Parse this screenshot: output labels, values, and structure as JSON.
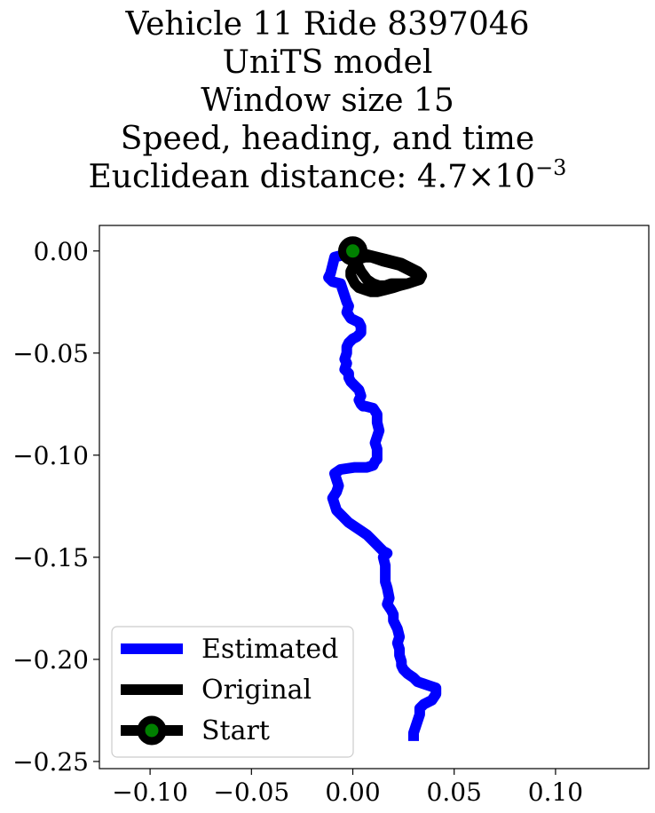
{
  "chart_data": {
    "type": "line",
    "title_lines": [
      "Vehicle 11 Ride 8397046",
      "UniTS model",
      "Window size 15",
      "Speed, heading, and time"
    ],
    "distance_label": "Euclidean distance: 4.7",
    "distance_multiplier": "×10",
    "distance_exponent": "−3",
    "xlim": [
      -0.125,
      0.146
    ],
    "ylim": [
      -0.2535,
      0.0125
    ],
    "xticks": [
      -0.1,
      -0.05,
      0.0,
      0.05,
      0.1
    ],
    "xtick_labels": [
      "−0.10",
      "−0.05",
      "0.00",
      "0.05",
      "0.10"
    ],
    "yticks": [
      0.0,
      -0.05,
      -0.1,
      -0.15,
      -0.2,
      -0.25
    ],
    "ytick_labels": [
      "0.00",
      "−0.05",
      "−0.10",
      "−0.15",
      "−0.20",
      "−0.25"
    ],
    "grid": false,
    "legend_position": "lower-left",
    "series": [
      {
        "name": "Estimated",
        "color": "#0000ff",
        "x": [
          0.0,
          -0.005,
          -0.009,
          -0.01,
          -0.011,
          -0.012,
          -0.01,
          -0.006,
          -0.005,
          -0.004,
          -0.003,
          -0.002,
          -0.003,
          -0.001,
          0.001,
          0.003,
          0.004,
          0.004,
          0.002,
          0.0,
          -0.002,
          -0.003,
          -0.003,
          -0.004,
          -0.003,
          -0.004,
          -0.002,
          -0.002,
          -0.001,
          0.001,
          0.003,
          0.004,
          0.003,
          0.004,
          0.005,
          0.006,
          0.01,
          0.012,
          0.012,
          0.013,
          0.012,
          0.011,
          0.012,
          0.012,
          0.012,
          0.011,
          0.01,
          0.007,
          0.004,
          0.001,
          -0.006,
          -0.009,
          -0.008,
          -0.007,
          -0.008,
          -0.01,
          -0.009,
          -0.008,
          -0.006,
          -0.004,
          -0.002,
          0.001,
          0.004,
          0.007,
          0.01,
          0.013,
          0.015,
          0.017,
          0.015,
          0.016,
          0.016,
          0.016,
          0.017,
          0.018,
          0.017,
          0.019,
          0.02,
          0.02,
          0.022,
          0.023,
          0.022,
          0.023,
          0.023,
          0.024,
          0.024,
          0.025,
          0.027,
          0.03,
          0.032,
          0.035,
          0.038,
          0.041,
          0.041,
          0.039,
          0.035,
          0.033,
          0.033,
          0.032,
          0.031,
          0.03,
          0.03
        ],
        "y": [
          -0.002,
          -0.002,
          -0.003,
          -0.007,
          -0.011,
          -0.013,
          -0.015,
          -0.016,
          -0.019,
          -0.022,
          -0.025,
          -0.027,
          -0.03,
          -0.033,
          -0.034,
          -0.035,
          -0.037,
          -0.04,
          -0.042,
          -0.043,
          -0.045,
          -0.047,
          -0.05,
          -0.053,
          -0.055,
          -0.058,
          -0.06,
          -0.062,
          -0.064,
          -0.066,
          -0.068,
          -0.071,
          -0.073,
          -0.075,
          -0.076,
          -0.076,
          -0.077,
          -0.08,
          -0.084,
          -0.088,
          -0.091,
          -0.094,
          -0.097,
          -0.1,
          -0.102,
          -0.103,
          -0.105,
          -0.106,
          -0.106,
          -0.106,
          -0.107,
          -0.109,
          -0.112,
          -0.115,
          -0.118,
          -0.121,
          -0.124,
          -0.127,
          -0.129,
          -0.131,
          -0.133,
          -0.135,
          -0.137,
          -0.139,
          -0.142,
          -0.145,
          -0.147,
          -0.148,
          -0.15,
          -0.154,
          -0.158,
          -0.162,
          -0.165,
          -0.17,
          -0.173,
          -0.176,
          -0.178,
          -0.181,
          -0.185,
          -0.189,
          -0.192,
          -0.195,
          -0.198,
          -0.201,
          -0.203,
          -0.205,
          -0.207,
          -0.209,
          -0.211,
          -0.212,
          -0.213,
          -0.214,
          -0.217,
          -0.22,
          -0.222,
          -0.224,
          -0.227,
          -0.23,
          -0.233,
          -0.236,
          -0.24
        ]
      },
      {
        "name": "Original",
        "color": "#000000",
        "x": [
          0.0,
          0.004,
          0.008,
          0.012,
          0.016,
          0.02,
          0.024,
          0.028,
          0.032,
          0.034,
          0.033,
          0.03,
          0.027,
          0.023,
          0.02,
          0.016,
          0.012,
          0.009,
          0.006,
          0.003,
          0.001,
          0.0,
          -0.001,
          -0.001,
          0.0,
          0.001,
          0.003,
          0.006,
          0.009,
          0.012,
          0.015,
          0.019,
          0.023,
          0.027,
          0.031,
          0.033,
          0.033,
          0.03,
          0.027,
          0.023,
          0.019,
          0.016,
          0.013,
          0.01,
          0.007,
          0.004,
          0.002,
          0.0
        ],
        "y": [
          0.0,
          -0.001,
          -0.002,
          -0.003,
          -0.004,
          -0.005,
          -0.006,
          -0.008,
          -0.01,
          -0.012,
          -0.014,
          -0.015,
          -0.016,
          -0.017,
          -0.018,
          -0.019,
          -0.02,
          -0.02,
          -0.019,
          -0.018,
          -0.016,
          -0.014,
          -0.012,
          -0.01,
          -0.008,
          -0.006,
          -0.004,
          -0.003,
          -0.003,
          -0.004,
          -0.005,
          -0.006,
          -0.007,
          -0.009,
          -0.011,
          -0.013,
          -0.014,
          -0.015,
          -0.016,
          -0.016,
          -0.016,
          -0.017,
          -0.017,
          -0.016,
          -0.014,
          -0.01,
          -0.006,
          -0.002
        ]
      },
      {
        "name": "Start",
        "color": "#000000",
        "marker_face_color": "#008000",
        "x": [
          0.0
        ],
        "y": [
          0.0
        ]
      }
    ]
  }
}
